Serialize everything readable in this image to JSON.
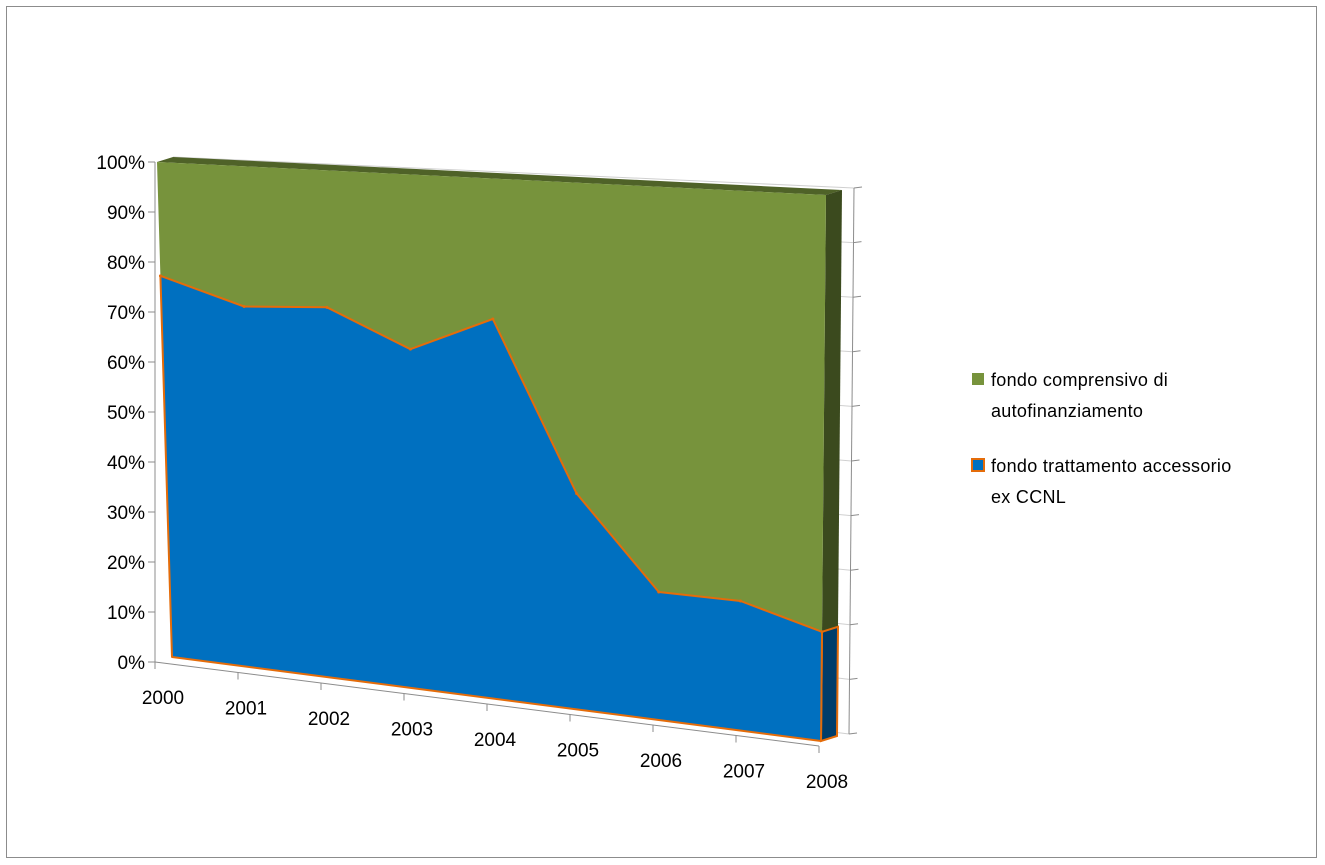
{
  "chart_data": {
    "type": "area",
    "stacked": "percent",
    "three_d": true,
    "categories": [
      "2000",
      "2001",
      "2002",
      "2003",
      "2004",
      "2005",
      "2006",
      "2007",
      "2008"
    ],
    "series": [
      {
        "name": "fondo trattamento accessorio ex CCNL",
        "values": [
          77,
          72,
          73,
          66,
          73,
          41,
          24,
          24,
          20
        ],
        "color": "#0070c0",
        "outline": "#e46c0a"
      },
      {
        "name": "fondo comprensivo di autofinanziamento",
        "values": [
          23,
          28,
          27,
          34,
          27,
          59,
          76,
          76,
          80
        ],
        "color": "#77933c"
      }
    ],
    "y_ticks": [
      "0%",
      "10%",
      "20%",
      "30%",
      "40%",
      "50%",
      "60%",
      "70%",
      "80%",
      "90%",
      "100%"
    ],
    "ylim": [
      0,
      100
    ],
    "legend": {
      "position": "right",
      "entries": [
        {
          "lines": [
            "fondo comprensivo di",
            "autofinanziamento"
          ],
          "color": "#77933c"
        },
        {
          "lines": [
            "fondo trattamento accessorio",
            "ex CCNL"
          ],
          "color": "#0070c0",
          "outline": "#e46c0a"
        }
      ]
    }
  }
}
